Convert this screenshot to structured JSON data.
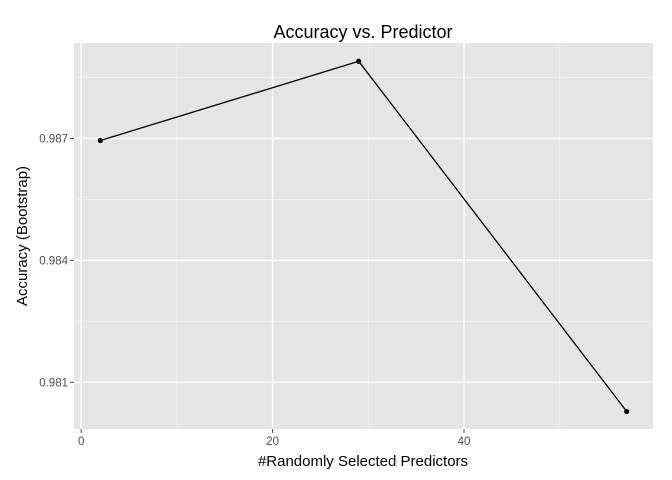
{
  "chart_data": {
    "type": "line",
    "title": "Accuracy vs. Predictor",
    "xlabel": "#Randomly Selected Predictors",
    "ylabel": "Accuracy (Bootstrap)",
    "x": [
      2,
      29,
      57
    ],
    "series": [
      {
        "values": [
          0.98695,
          0.9889,
          0.98028
        ]
      }
    ],
    "xlim": [
      -0.75,
      59.75
    ],
    "ylim": [
      0.97985,
      0.98935
    ],
    "xticks": [
      0,
      20,
      40
    ],
    "xtick_labels": [
      "0",
      "20",
      "40"
    ],
    "yticks": [
      0.981,
      0.984,
      0.987
    ],
    "ytick_labels": [
      "0.981",
      "0.984",
      "0.987"
    ],
    "grid": true,
    "legend": "none",
    "colors": {
      "panel": "#e5e5e5",
      "grid_major": "#ffffff",
      "grid_minor": "#f2f2f2",
      "line": "#000000",
      "tick": "#4d4d4d"
    }
  }
}
